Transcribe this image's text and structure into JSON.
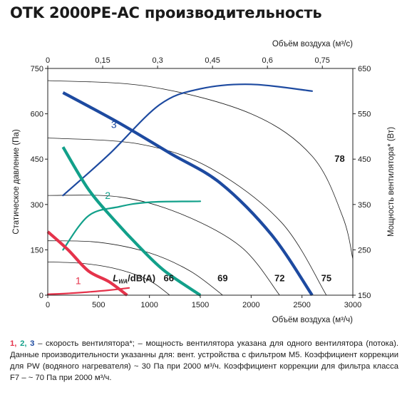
{
  "title": "OTK 2000PE-AC производительность",
  "footnote": {
    "num1": "1",
    "sep1": ", ",
    "num2": "2",
    "sep2": ", ",
    "num3": "3",
    "text": " – скорость вентилятора*; – мощность вентилятора указана для одного вентилятора (потока). Данные производительности указанны для: вент. устройства с фильтром M5. Коэффициент коррекции для PW (водяного нагревателя) ~ 30 Па при 2000 м³/ч. Коэффициент коррекции для фильтра класса F7 – ~ 70 Па при 2000 м³/ч."
  },
  "colors": {
    "speed1": "#e5334b",
    "speed2": "#12a08a",
    "speed3": "#1d4aa0",
    "noise": "#1a1a1a",
    "grid": "#8a8a8a",
    "background": "#ffffff"
  },
  "chart_data": {
    "type": "line",
    "xlabel": "Объём воздуха (м³/ч)",
    "x2label": "Объём воздуха (м³/с)",
    "ylabel": "Статическое давление (Па)",
    "y2label": "Мощность вентилятора* (Вт)",
    "xlim": [
      0,
      3000
    ],
    "ylim": [
      0,
      750
    ],
    "y2lim": [
      150,
      650
    ],
    "x2lim": [
      0,
      0.8333
    ],
    "xticks": [
      "0",
      "500",
      "1000",
      "1500",
      "2000",
      "2500",
      "3000"
    ],
    "xtick_values": [
      0,
      500,
      1000,
      1500,
      2000,
      2500,
      3000
    ],
    "x2ticks": [
      "0",
      "0,15",
      "0,3",
      "0,45",
      "0,6",
      "0,75"
    ],
    "x2tick_values": [
      0,
      0.15,
      0.3,
      0.45,
      0.6,
      0.75
    ],
    "yticks": [
      "0",
      "150",
      "300",
      "450",
      "600",
      "750"
    ],
    "ytick_values": [
      0,
      150,
      300,
      450,
      600,
      750
    ],
    "y2ticks": [
      "150",
      "250",
      "350",
      "450",
      "550",
      "650"
    ],
    "y2tick_values": [
      150,
      250,
      350,
      450,
      550,
      650
    ],
    "grid": false,
    "noise_label": "L_WA/dB(A)",
    "noise_label_main": "L",
    "noise_label_sub": "WA",
    "noise_label_unit": "/dB(A)",
    "noise_label_pos": [
      640,
      55
    ],
    "pressure_curves": [
      {
        "name": "1",
        "label_pos": [
          300,
          48
        ],
        "points": [
          [
            0,
            210
          ],
          [
            200,
            150
          ],
          [
            400,
            80
          ],
          [
            600,
            45
          ],
          [
            780,
            0
          ]
        ]
      },
      {
        "name": "2",
        "label_pos": [
          590,
          330
        ],
        "points": [
          [
            150,
            490
          ],
          [
            400,
            350
          ],
          [
            650,
            250
          ],
          [
            900,
            160
          ],
          [
            1150,
            80
          ],
          [
            1500,
            0
          ]
        ]
      },
      {
        "name": "3",
        "label_pos": [
          650,
          565
        ],
        "points": [
          [
            150,
            670
          ],
          [
            700,
            570
          ],
          [
            1200,
            470
          ],
          [
            1700,
            370
          ],
          [
            2200,
            200
          ],
          [
            2600,
            0
          ]
        ]
      }
    ],
    "power_curves": [
      {
        "name": "1",
        "points": [
          [
            0,
            152
          ],
          [
            200,
            154
          ],
          [
            400,
            157
          ],
          [
            600,
            161
          ],
          [
            800,
            166
          ]
        ]
      },
      {
        "name": "2",
        "points": [
          [
            150,
            250
          ],
          [
            400,
            325
          ],
          [
            700,
            345
          ],
          [
            1000,
            355
          ],
          [
            1500,
            357
          ]
        ]
      },
      {
        "name": "3",
        "points": [
          [
            150,
            370
          ],
          [
            600,
            460
          ],
          [
            1100,
            570
          ],
          [
            1500,
            605
          ],
          [
            2000,
            615
          ],
          [
            2600,
            600
          ]
        ]
      }
    ],
    "noise_curves": [
      {
        "name": "66",
        "label_pos": [
          1190,
          55
        ],
        "points": [
          [
            0,
            110
          ],
          [
            350,
            105
          ],
          [
            700,
            85
          ],
          [
            1000,
            48
          ],
          [
            1200,
            0
          ]
        ]
      },
      {
        "name": "69",
        "label_pos": [
          1720,
          55
        ],
        "points": [
          [
            0,
            180
          ],
          [
            500,
            175
          ],
          [
            1000,
            140
          ],
          [
            1400,
            80
          ],
          [
            1720,
            0
          ]
        ]
      },
      {
        "name": "72",
        "label_pos": [
          2280,
          55
        ],
        "points": [
          [
            0,
            330
          ],
          [
            700,
            325
          ],
          [
            1300,
            270
          ],
          [
            1900,
            160
          ],
          [
            2280,
            0
          ]
        ]
      },
      {
        "name": "75",
        "label_pos": [
          2740,
          55
        ],
        "points": [
          [
            0,
            520
          ],
          [
            900,
            500
          ],
          [
            1600,
            420
          ],
          [
            2300,
            240
          ],
          [
            2740,
            0
          ]
        ]
      },
      {
        "name": "78",
        "label_pos": [
          2870,
          450
        ],
        "points": [
          [
            0,
            710
          ],
          [
            1000,
            690
          ],
          [
            2000,
            600
          ],
          [
            2600,
            460
          ],
          [
            2900,
            260
          ],
          [
            3000,
            120
          ]
        ]
      }
    ]
  }
}
